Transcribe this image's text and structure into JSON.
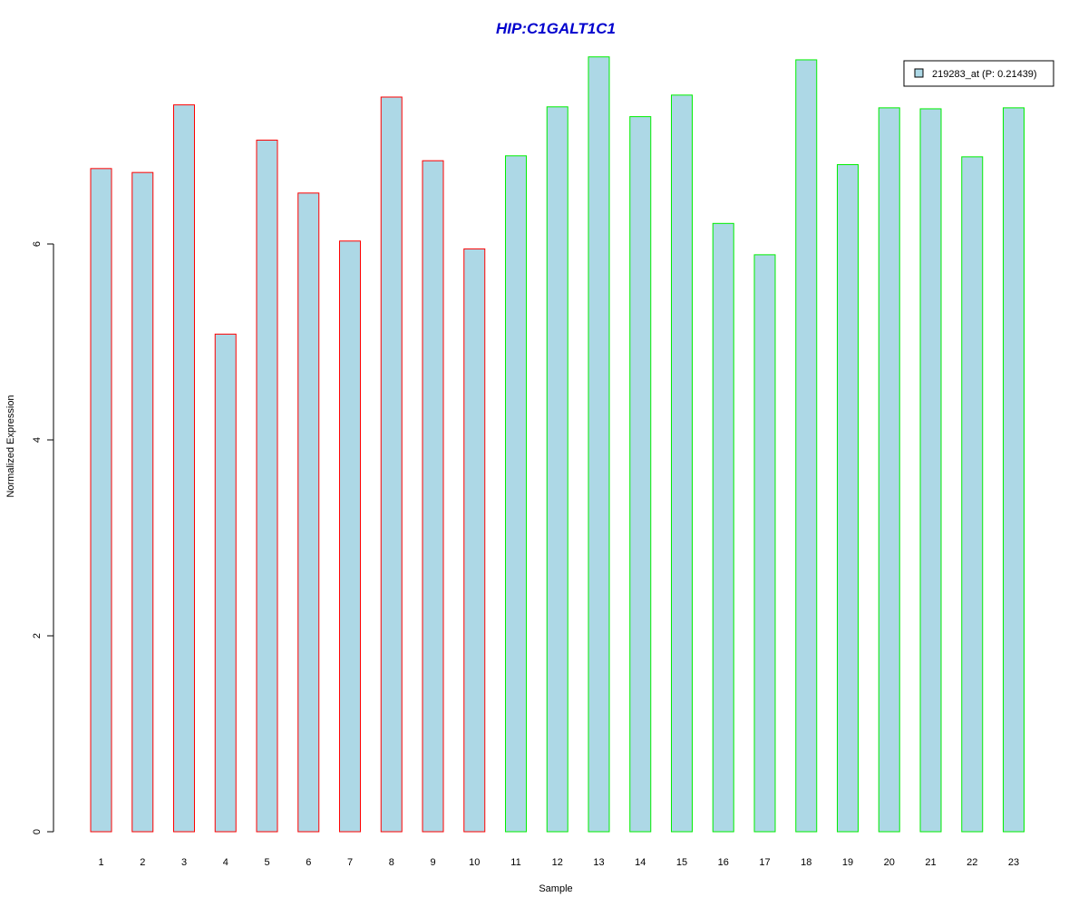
{
  "chart_data": {
    "type": "bar",
    "title": "HIP:C1GALT1C1",
    "xlabel": "Sample",
    "ylabel": "Normalized Expression",
    "categories": [
      "1",
      "2",
      "3",
      "4",
      "5",
      "6",
      "7",
      "8",
      "9",
      "10",
      "11",
      "12",
      "13",
      "14",
      "15",
      "16",
      "17",
      "18",
      "19",
      "20",
      "21",
      "22",
      "23"
    ],
    "series": [
      {
        "name": "219283_at (P: 0.21439)",
        "values": [
          6.77,
          6.73,
          7.42,
          5.08,
          7.06,
          6.52,
          6.03,
          7.5,
          6.85,
          5.95,
          6.9,
          7.4,
          7.91,
          7.3,
          7.52,
          6.21,
          5.89,
          7.88,
          6.81,
          7.39,
          7.38,
          6.89,
          7.39
        ]
      }
    ],
    "bar_border_colors": [
      "#ff0000",
      "#ff0000",
      "#ff0000",
      "#ff0000",
      "#ff0000",
      "#ff0000",
      "#ff0000",
      "#ff0000",
      "#ff0000",
      "#ff0000",
      "#00ee00",
      "#00ee00",
      "#00ee00",
      "#00ee00",
      "#00ee00",
      "#00ee00",
      "#00ee00",
      "#00ee00",
      "#00ee00",
      "#00ee00",
      "#00ee00",
      "#00ee00",
      "#00ee00"
    ],
    "bar_fill_color": "#add8e6",
    "title_color": "#0000cd",
    "yticks": [
      0,
      2,
      4,
      6
    ],
    "ylim": [
      0,
      7.91
    ],
    "grid": false,
    "legend_position": "top-right"
  }
}
